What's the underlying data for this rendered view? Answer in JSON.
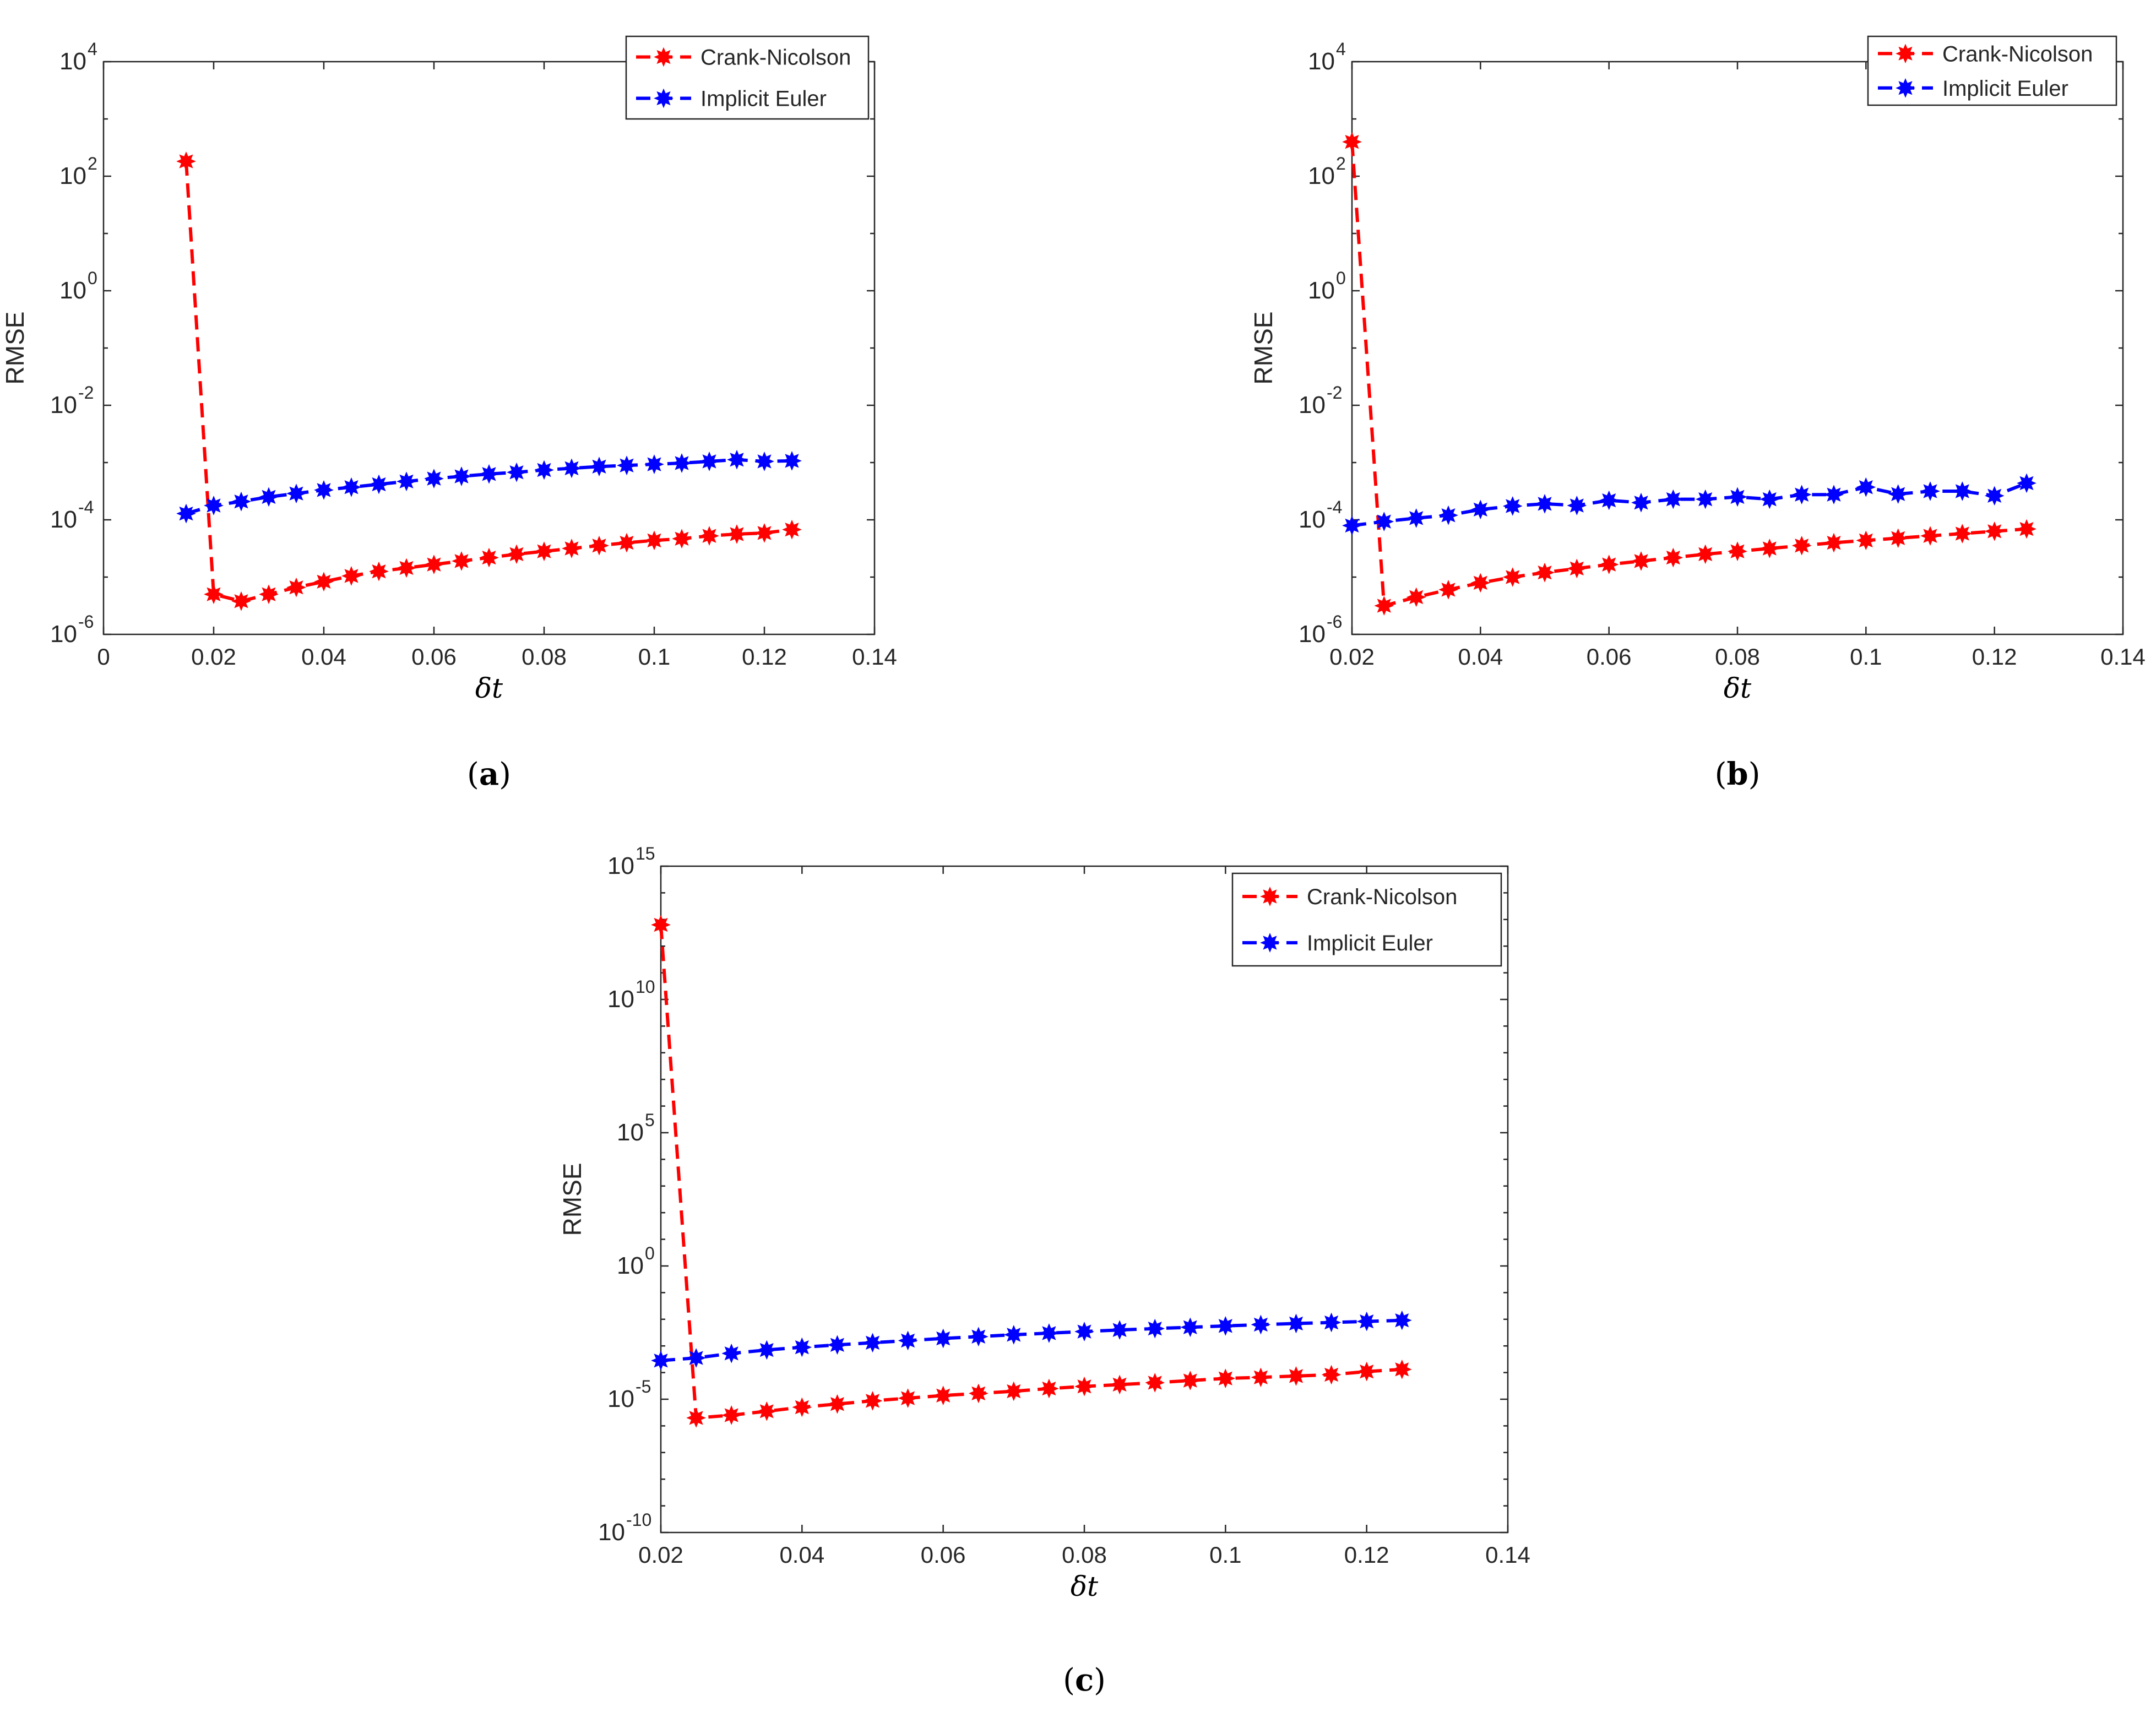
{
  "chart_data": [
    {
      "type": "line",
      "caption": "a",
      "xlabel": "δt",
      "ylabel": "RMSE",
      "xlim": [
        0,
        0.14
      ],
      "yscale": "log",
      "ylim_exp": [
        -6,
        4
      ],
      "xticks": [
        {
          "value": 0,
          "label": "0"
        },
        {
          "value": 0.02,
          "label": "0.02"
        },
        {
          "value": 0.04,
          "label": "0.04"
        },
        {
          "value": 0.06,
          "label": "0.06"
        },
        {
          "value": 0.08,
          "label": "0.08"
        },
        {
          "value": 0.1,
          "label": "0.1"
        },
        {
          "value": 0.12,
          "label": "0.12"
        },
        {
          "value": 0.14,
          "label": "0.14"
        }
      ],
      "yticks": [
        {
          "exp": -6,
          "mant": "10",
          "sup": "-6"
        },
        {
          "exp": -4,
          "mant": "10",
          "sup": "-4"
        },
        {
          "exp": -2,
          "mant": "10",
          "sup": "-2"
        },
        {
          "exp": 0,
          "mant": "10",
          "sup": "0"
        },
        {
          "exp": 2,
          "mant": "10",
          "sup": "2"
        },
        {
          "exp": 4,
          "mant": "10",
          "sup": "4"
        }
      ],
      "x": [
        0.015,
        0.02,
        0.025,
        0.03,
        0.035,
        0.04,
        0.045,
        0.05,
        0.055,
        0.06,
        0.065,
        0.07,
        0.075,
        0.08,
        0.085,
        0.09,
        0.095,
        0.1,
        0.105,
        0.11,
        0.115,
        0.12,
        0.125
      ],
      "legend": "top-right",
      "series": [
        {
          "name": "Crank-Nicolson",
          "color": "#ff0000",
          "log10": [
            2.26,
            -5.3,
            -5.42,
            -5.3,
            -5.18,
            -5.08,
            -4.98,
            -4.9,
            -4.84,
            -4.78,
            -4.72,
            -4.66,
            -4.6,
            -4.55,
            -4.5,
            -4.45,
            -4.4,
            -4.36,
            -4.33,
            -4.28,
            -4.25,
            -4.23,
            -4.17
          ]
        },
        {
          "name": "Implicit Euler",
          "color": "#0000ff",
          "log10": [
            -3.89,
            -3.75,
            -3.68,
            -3.6,
            -3.54,
            -3.48,
            -3.43,
            -3.38,
            -3.33,
            -3.28,
            -3.24,
            -3.2,
            -3.17,
            -3.13,
            -3.1,
            -3.07,
            -3.05,
            -3.03,
            -3.01,
            -2.98,
            -2.95,
            -2.98,
            -2.97
          ]
        }
      ]
    },
    {
      "type": "line",
      "caption": "b",
      "xlabel": "δt",
      "ylabel": "RMSE",
      "xlim": [
        0.02,
        0.14
      ],
      "yscale": "log",
      "ylim_exp": [
        -6,
        4
      ],
      "xticks": [
        {
          "value": 0.02,
          "label": "0.02"
        },
        {
          "value": 0.04,
          "label": "0.04"
        },
        {
          "value": 0.06,
          "label": "0.06"
        },
        {
          "value": 0.08,
          "label": "0.08"
        },
        {
          "value": 0.1,
          "label": "0.1"
        },
        {
          "value": 0.12,
          "label": "0.12"
        },
        {
          "value": 0.14,
          "label": "0.14"
        }
      ],
      "yticks": [
        {
          "exp": -6,
          "mant": "10",
          "sup": "-6"
        },
        {
          "exp": -4,
          "mant": "10",
          "sup": "-4"
        },
        {
          "exp": -2,
          "mant": "10",
          "sup": "-2"
        },
        {
          "exp": 0,
          "mant": "10",
          "sup": "0"
        },
        {
          "exp": 2,
          "mant": "10",
          "sup": "2"
        },
        {
          "exp": 4,
          "mant": "10",
          "sup": "4"
        }
      ],
      "x": [
        0.02,
        0.025,
        0.03,
        0.035,
        0.04,
        0.045,
        0.05,
        0.055,
        0.06,
        0.065,
        0.07,
        0.075,
        0.08,
        0.085,
        0.09,
        0.095,
        0.1,
        0.105,
        0.11,
        0.115,
        0.12,
        0.125
      ],
      "legend": "top-right",
      "series": [
        {
          "name": "Crank-Nicolson",
          "color": "#ff0000",
          "log10": [
            2.6,
            -5.5,
            -5.35,
            -5.22,
            -5.1,
            -5.0,
            -4.92,
            -4.85,
            -4.78,
            -4.72,
            -4.66,
            -4.6,
            -4.55,
            -4.5,
            -4.45,
            -4.4,
            -4.36,
            -4.32,
            -4.28,
            -4.24,
            -4.2,
            -4.16
          ]
        },
        {
          "name": "Implicit Euler",
          "color": "#0000ff",
          "log10": [
            -4.1,
            -4.03,
            -3.97,
            -3.92,
            -3.82,
            -3.76,
            -3.72,
            -3.75,
            -3.66,
            -3.7,
            -3.64,
            -3.64,
            -3.6,
            -3.64,
            -3.56,
            -3.56,
            -3.43,
            -3.55,
            -3.5,
            -3.5,
            -3.58,
            -3.36
          ]
        }
      ]
    },
    {
      "type": "line",
      "caption": "c",
      "xlabel": "δt",
      "ylabel": "RMSE",
      "xlim": [
        0.02,
        0.14
      ],
      "yscale": "log",
      "ylim_exp": [
        -10,
        15
      ],
      "xticks": [
        {
          "value": 0.02,
          "label": "0.02"
        },
        {
          "value": 0.04,
          "label": "0.04"
        },
        {
          "value": 0.06,
          "label": "0.06"
        },
        {
          "value": 0.08,
          "label": "0.08"
        },
        {
          "value": 0.1,
          "label": "0.1"
        },
        {
          "value": 0.12,
          "label": "0.12"
        },
        {
          "value": 0.14,
          "label": "0.14"
        }
      ],
      "yticks": [
        {
          "exp": -10,
          "mant": "10",
          "sup": "-10"
        },
        {
          "exp": -5,
          "mant": "10",
          "sup": "-5"
        },
        {
          "exp": 0,
          "mant": "10",
          "sup": "0"
        },
        {
          "exp": 5,
          "mant": "10",
          "sup": "5"
        },
        {
          "exp": 10,
          "mant": "10",
          "sup": "10"
        },
        {
          "exp": 15,
          "mant": "10",
          "sup": "15"
        }
      ],
      "x": [
        0.02,
        0.025,
        0.03,
        0.035,
        0.04,
        0.045,
        0.05,
        0.055,
        0.06,
        0.065,
        0.07,
        0.075,
        0.08,
        0.085,
        0.09,
        0.095,
        0.1,
        0.105,
        0.11,
        0.115,
        0.12,
        0.125
      ],
      "legend": "top-right",
      "series": [
        {
          "name": "Crank-Nicolson",
          "color": "#ff0000",
          "log10": [
            12.8,
            -5.7,
            -5.6,
            -5.45,
            -5.3,
            -5.18,
            -5.06,
            -4.96,
            -4.86,
            -4.78,
            -4.7,
            -4.6,
            -4.52,
            -4.45,
            -4.38,
            -4.3,
            -4.22,
            -4.18,
            -4.13,
            -4.08,
            -3.96,
            -3.88
          ]
        },
        {
          "name": "Implicit Euler",
          "color": "#0000ff",
          "log10": [
            -3.55,
            -3.45,
            -3.28,
            -3.15,
            -3.05,
            -2.96,
            -2.88,
            -2.8,
            -2.72,
            -2.65,
            -2.58,
            -2.52,
            -2.46,
            -2.4,
            -2.35,
            -2.3,
            -2.25,
            -2.2,
            -2.16,
            -2.12,
            -2.08,
            -2.04
          ]
        }
      ]
    }
  ]
}
